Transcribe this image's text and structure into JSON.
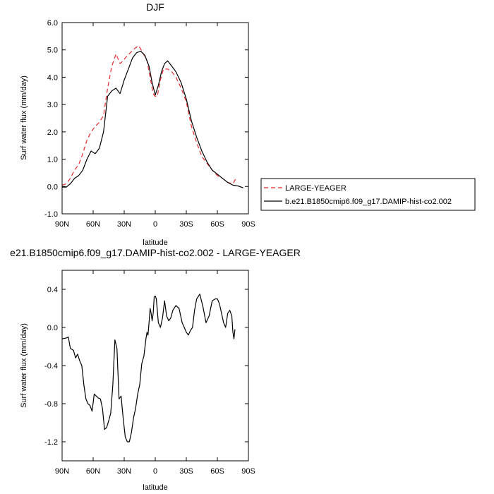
{
  "chart_data": [
    {
      "type": "line",
      "title": "DJF",
      "xlabel": "latitude",
      "ylabel": "Surf water flux (mm/day)",
      "xlim": [
        90,
        -90
      ],
      "ylim": [
        -1.0,
        6.0
      ],
      "x_ticks": [
        {
          "value": 90,
          "label": "90N"
        },
        {
          "value": 60,
          "label": "60N"
        },
        {
          "value": 30,
          "label": "30N"
        },
        {
          "value": 0,
          "label": "0"
        },
        {
          "value": -30,
          "label": "30S"
        },
        {
          "value": -60,
          "label": "60S"
        },
        {
          "value": -90,
          "label": "90S"
        }
      ],
      "y_ticks": [
        {
          "value": -1.0,
          "label": "-1.0"
        },
        {
          "value": 0.0,
          "label": "0.0"
        },
        {
          "value": 1.0,
          "label": "1.0"
        },
        {
          "value": 2.0,
          "label": "2.0"
        },
        {
          "value": 3.0,
          "label": "3.0"
        },
        {
          "value": 4.0,
          "label": "4.0"
        },
        {
          "value": 5.0,
          "label": "5.0"
        },
        {
          "value": 6.0,
          "label": "6.0"
        }
      ],
      "legend": "right",
      "series": [
        {
          "name": "LARGE-YEAGER",
          "color": "#e8282c",
          "dash": "dashed",
          "x": [
            90,
            86,
            82,
            78,
            74,
            70,
            66,
            62,
            58,
            54,
            50,
            46,
            42,
            38,
            34,
            31,
            28,
            24,
            20,
            16,
            12,
            8,
            5,
            2,
            0,
            -2,
            -5,
            -8,
            -12,
            -16,
            -20,
            -25,
            -30,
            -35,
            -40,
            -45,
            -50,
            -55,
            -60,
            -65,
            -70,
            -75,
            -78
          ],
          "y": [
            0.05,
            0.1,
            0.3,
            0.6,
            0.8,
            1.2,
            1.7,
            2.0,
            2.2,
            2.35,
            2.6,
            3.6,
            4.4,
            4.85,
            4.5,
            4.6,
            4.75,
            4.9,
            5.05,
            5.15,
            4.9,
            4.6,
            4.0,
            3.4,
            3.3,
            3.3,
            3.9,
            4.3,
            4.3,
            4.2,
            4.0,
            3.6,
            3.1,
            2.2,
            1.6,
            1.1,
            0.85,
            0.6,
            0.4,
            0.3,
            0.15,
            0.1,
            0.3
          ]
        },
        {
          "name": "b.e21.B1850cmip6.f09_g17.DAMIP-hist-co2.002",
          "color": "#000000",
          "dash": "solid",
          "x": [
            90,
            86,
            82,
            78,
            74,
            70,
            66,
            62,
            58,
            54,
            50,
            46,
            42,
            38,
            34,
            30,
            26,
            22,
            18,
            14,
            10,
            6,
            3,
            0,
            -3,
            -6,
            -9,
            -12,
            -16,
            -20,
            -25,
            -30,
            -35,
            -40,
            -45,
            -50,
            -55,
            -60,
            -65,
            -70,
            -75,
            -80,
            -85
          ],
          "y": [
            -0.02,
            -0.02,
            0.1,
            0.3,
            0.4,
            0.6,
            1.0,
            1.3,
            1.2,
            1.4,
            2.0,
            3.3,
            3.5,
            3.6,
            3.4,
            3.9,
            4.3,
            4.7,
            4.9,
            4.95,
            4.8,
            4.4,
            3.8,
            3.35,
            3.7,
            4.2,
            4.5,
            4.6,
            4.4,
            4.2,
            3.8,
            3.2,
            2.4,
            1.8,
            1.3,
            0.9,
            0.6,
            0.45,
            0.3,
            0.15,
            0.05,
            0.02,
            -0.05
          ]
        }
      ]
    },
    {
      "type": "line",
      "title": "e21.B1850cmip6.f09_g17.DAMIP-hist-co2.002 - LARGE-YEAGER",
      "xlabel": "latitude",
      "ylabel": "Surf water flux (mm/day)",
      "xlim": [
        90,
        -90
      ],
      "ylim": [
        -1.4,
        0.6
      ],
      "x_ticks": [
        {
          "value": 90,
          "label": "90N"
        },
        {
          "value": 60,
          "label": "60N"
        },
        {
          "value": 30,
          "label": "30N"
        },
        {
          "value": 0,
          "label": "0"
        },
        {
          "value": -30,
          "label": "30S"
        },
        {
          "value": -60,
          "label": "60S"
        },
        {
          "value": -90,
          "label": "90S"
        }
      ],
      "y_ticks": [
        {
          "value": -1.2,
          "label": "-1.2"
        },
        {
          "value": -0.8,
          "label": "-0.8"
        },
        {
          "value": -0.4,
          "label": "-0.4"
        },
        {
          "value": 0.0,
          "label": "0.0"
        },
        {
          "value": 0.4,
          "label": "0.4"
        }
      ],
      "series": [
        {
          "color": "#000000",
          "dash": "solid",
          "x": [
            90,
            86,
            84,
            82,
            79,
            77,
            75,
            73,
            71,
            69,
            67,
            65,
            63,
            61,
            59,
            57,
            55,
            53,
            51,
            49,
            47,
            45,
            43,
            41,
            39,
            37,
            35,
            33,
            31,
            29,
            27,
            25,
            23,
            21,
            19,
            17,
            15,
            13,
            11,
            9,
            8,
            7,
            6,
            5,
            4,
            3,
            2,
            1,
            0,
            -1,
            -3,
            -5,
            -7,
            -9,
            -11,
            -13,
            -15,
            -17,
            -20,
            -23,
            -26,
            -28,
            -30,
            -32,
            -34,
            -36,
            -38,
            -40,
            -43,
            -46,
            -49,
            -52,
            -55,
            -58,
            -60,
            -62,
            -64,
            -66,
            -68,
            -70,
            -72,
            -74,
            -75,
            -76,
            -77
          ],
          "y": [
            -0.12,
            -0.11,
            -0.1,
            -0.22,
            -0.24,
            -0.32,
            -0.28,
            -0.35,
            -0.4,
            -0.6,
            -0.75,
            -0.8,
            -0.82,
            -0.88,
            -0.7,
            -0.72,
            -0.74,
            -0.75,
            -0.85,
            -1.07,
            -1.05,
            -0.98,
            -0.9,
            -0.6,
            -0.13,
            -0.22,
            -0.75,
            -0.72,
            -0.95,
            -1.15,
            -1.2,
            -1.2,
            -1.1,
            -0.95,
            -0.85,
            -0.7,
            -0.6,
            -0.38,
            -0.3,
            -0.12,
            -0.05,
            -0.08,
            0.05,
            0.2,
            0.15,
            0.07,
            0.15,
            0.32,
            0.33,
            0.3,
            0.05,
            0.0,
            0.1,
            0.28,
            0.12,
            0.07,
            0.1,
            0.18,
            0.23,
            0.2,
            0.05,
            0.0,
            -0.05,
            -0.08,
            -0.03,
            0.0,
            0.18,
            0.3,
            0.35,
            0.22,
            0.05,
            0.12,
            0.28,
            0.3,
            0.3,
            0.25,
            0.15,
            0.05,
            0.0,
            0.15,
            0.18,
            0.12,
            -0.05,
            -0.12,
            -0.02
          ]
        }
      ]
    }
  ]
}
